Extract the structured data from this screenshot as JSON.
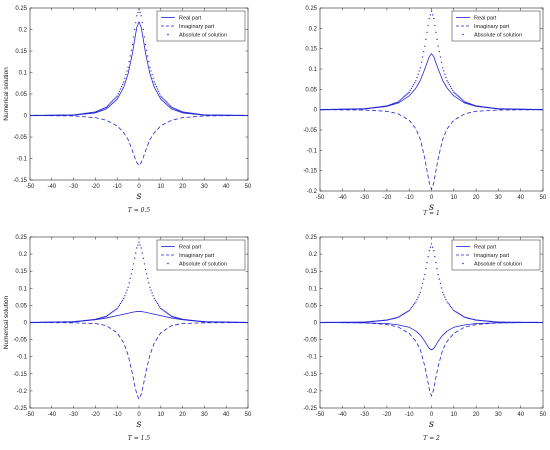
{
  "chart_data": [
    {
      "type": "line",
      "caption": "T = 0.5",
      "xlabel": "s",
      "ylabel": "Numerical solution",
      "xlim": [
        -50,
        50
      ],
      "ylim": [
        -0.15,
        0.25
      ],
      "xticks": [
        -50,
        -40,
        -30,
        -20,
        -10,
        0,
        10,
        20,
        30,
        40,
        50
      ],
      "yticks": [
        -0.15,
        -0.1,
        -0.05,
        0,
        0.05,
        0.1,
        0.15,
        0.2,
        0.25
      ],
      "legend": "top-right",
      "series": [
        {
          "name": "Real part",
          "style": "solid",
          "x": [
            -50,
            -30,
            -20,
            -15,
            -10,
            -7,
            -5,
            -3,
            -2,
            -1,
            0,
            1,
            2,
            3,
            5,
            7,
            10,
            15,
            20,
            30,
            50
          ],
          "y": [
            0,
            0.001,
            0.006,
            0.015,
            0.038,
            0.066,
            0.097,
            0.145,
            0.176,
            0.205,
            0.218,
            0.205,
            0.176,
            0.145,
            0.097,
            0.066,
            0.038,
            0.015,
            0.006,
            0.001,
            0
          ]
        },
        {
          "name": "Imaginary part",
          "style": "dashed",
          "x": [
            -50,
            -30,
            -20,
            -15,
            -10,
            -7,
            -5,
            -3,
            -2,
            -1,
            0,
            1,
            2,
            3,
            5,
            7,
            10,
            15,
            20,
            30,
            50
          ],
          "y": [
            0,
            -0.001,
            -0.005,
            -0.011,
            -0.024,
            -0.04,
            -0.056,
            -0.082,
            -0.097,
            -0.11,
            -0.116,
            -0.11,
            -0.097,
            -0.082,
            -0.056,
            -0.04,
            -0.024,
            -0.011,
            -0.005,
            -0.001,
            0
          ]
        },
        {
          "name": "Absolute of solution",
          "style": "dotted",
          "x": [
            -50,
            -30,
            -20,
            -15,
            -10,
            -7,
            -5,
            -3,
            -2,
            -1,
            0,
            1,
            2,
            3,
            5,
            7,
            10,
            15,
            20,
            30,
            50
          ],
          "y": [
            0,
            0.001,
            0.008,
            0.019,
            0.045,
            0.078,
            0.112,
            0.165,
            0.2,
            0.232,
            0.247,
            0.232,
            0.2,
            0.165,
            0.112,
            0.078,
            0.045,
            0.019,
            0.008,
            0.001,
            0
          ]
        }
      ]
    },
    {
      "type": "line",
      "caption": "T = 1",
      "xlabel": "s",
      "ylabel": "",
      "xlim": [
        -50,
        50
      ],
      "ylim": [
        -0.2,
        0.25
      ],
      "xticks": [
        -50,
        -40,
        -30,
        -20,
        -10,
        0,
        10,
        20,
        30,
        40,
        50
      ],
      "yticks": [
        -0.2,
        -0.15,
        -0.1,
        -0.05,
        0,
        0.05,
        0.1,
        0.15,
        0.2,
        0.25
      ],
      "legend": "top-right",
      "series": [
        {
          "name": "Real part",
          "style": "solid",
          "x": [
            -50,
            -30,
            -20,
            -15,
            -10,
            -7,
            -5,
            -3,
            -2,
            -1,
            0,
            1,
            2,
            3,
            5,
            7,
            10,
            15,
            20,
            30,
            50
          ],
          "y": [
            0,
            0.002,
            0.008,
            0.016,
            0.034,
            0.053,
            0.072,
            0.1,
            0.115,
            0.13,
            0.138,
            0.13,
            0.115,
            0.1,
            0.072,
            0.053,
            0.034,
            0.016,
            0.008,
            0.002,
            0
          ]
        },
        {
          "name": "Imaginary part",
          "style": "dashed",
          "x": [
            -50,
            -30,
            -20,
            -15,
            -10,
            -7,
            -5,
            -3,
            -2,
            -1,
            0,
            1,
            2,
            3,
            5,
            7,
            10,
            15,
            20,
            30,
            50
          ],
          "y": [
            0,
            -0.001,
            -0.004,
            -0.01,
            -0.026,
            -0.047,
            -0.073,
            -0.12,
            -0.15,
            -0.18,
            -0.196,
            -0.18,
            -0.15,
            -0.12,
            -0.073,
            -0.047,
            -0.026,
            -0.01,
            -0.004,
            -0.001,
            0
          ]
        },
        {
          "name": "Absolute of solution",
          "style": "dotted",
          "x": [
            -50,
            -30,
            -20,
            -15,
            -10,
            -7,
            -5,
            -3,
            -2,
            -1,
            0,
            1,
            2,
            3,
            5,
            7,
            10,
            15,
            20,
            30,
            50
          ],
          "y": [
            0,
            0.002,
            0.009,
            0.019,
            0.043,
            0.071,
            0.103,
            0.156,
            0.19,
            0.224,
            0.242,
            0.224,
            0.19,
            0.156,
            0.103,
            0.071,
            0.043,
            0.019,
            0.009,
            0.002,
            0
          ]
        }
      ]
    },
    {
      "type": "line",
      "caption": "T = 1.5",
      "xlabel": "s",
      "ylabel": "Numerical solution",
      "xlim": [
        -50,
        50
      ],
      "ylim": [
        -0.25,
        0.25
      ],
      "xticks": [
        -50,
        -40,
        -30,
        -20,
        -10,
        0,
        10,
        20,
        30,
        40,
        50
      ],
      "yticks": [
        -0.25,
        -0.2,
        -0.15,
        -0.1,
        -0.05,
        0,
        0.05,
        0.1,
        0.15,
        0.2,
        0.25
      ],
      "legend": "top-right",
      "series": [
        {
          "name": "Real part",
          "style": "solid",
          "x": [
            -50,
            -30,
            -20,
            -15,
            -10,
            -7,
            -5,
            -3,
            -2,
            -1,
            0,
            1,
            2,
            3,
            5,
            7,
            10,
            15,
            20,
            30,
            50
          ],
          "y": [
            0,
            0.002,
            0.008,
            0.013,
            0.02,
            0.024,
            0.027,
            0.03,
            0.031,
            0.032,
            0.032,
            0.032,
            0.031,
            0.03,
            0.027,
            0.024,
            0.02,
            0.013,
            0.008,
            0.002,
            0
          ]
        },
        {
          "name": "Imaginary part",
          "style": "dashed",
          "x": [
            -50,
            -30,
            -20,
            -15,
            -10,
            -7,
            -5,
            -3,
            -2,
            -1,
            0,
            1,
            2,
            3,
            5,
            7,
            10,
            15,
            20,
            30,
            50
          ],
          "y": [
            0,
            -0.001,
            -0.003,
            -0.009,
            -0.03,
            -0.06,
            -0.095,
            -0.15,
            -0.183,
            -0.21,
            -0.224,
            -0.21,
            -0.183,
            -0.15,
            -0.095,
            -0.06,
            -0.03,
            -0.009,
            -0.003,
            -0.001,
            0
          ]
        },
        {
          "name": "Absolute of solution",
          "style": "dotted",
          "x": [
            -50,
            -30,
            -20,
            -15,
            -10,
            -7,
            -5,
            -3,
            -2,
            -1,
            0,
            1,
            2,
            3,
            5,
            7,
            10,
            15,
            20,
            30,
            50
          ],
          "y": [
            0,
            0.002,
            0.009,
            0.018,
            0.041,
            0.07,
            0.103,
            0.155,
            0.188,
            0.218,
            0.235,
            0.218,
            0.188,
            0.155,
            0.103,
            0.07,
            0.041,
            0.018,
            0.009,
            0.002,
            0
          ]
        }
      ]
    },
    {
      "type": "line",
      "caption": "T = 2",
      "xlabel": "s",
      "ylabel": "",
      "xlim": [
        -50,
        50
      ],
      "ylim": [
        -0.25,
        0.25
      ],
      "xticks": [
        -50,
        -40,
        -30,
        -20,
        -10,
        0,
        10,
        20,
        30,
        40,
        50
      ],
      "yticks": [
        -0.25,
        -0.2,
        -0.15,
        -0.1,
        -0.05,
        0,
        0.05,
        0.1,
        0.15,
        0.2,
        0.25
      ],
      "legend": "top-right",
      "series": [
        {
          "name": "Real part",
          "style": "solid",
          "x": [
            -50,
            -30,
            -20,
            -15,
            -10,
            -7,
            -5,
            -3,
            -2,
            -1,
            0,
            1,
            2,
            3,
            5,
            7,
            10,
            15,
            20,
            30,
            50
          ],
          "y": [
            0,
            -0.001,
            -0.003,
            -0.007,
            -0.014,
            -0.025,
            -0.037,
            -0.055,
            -0.066,
            -0.076,
            -0.08,
            -0.076,
            -0.066,
            -0.055,
            -0.037,
            -0.025,
            -0.014,
            -0.007,
            -0.003,
            -0.001,
            0
          ]
        },
        {
          "name": "Imaginary part",
          "style": "dashed",
          "x": [
            -50,
            -30,
            -20,
            -15,
            -10,
            -7,
            -5,
            -3,
            -2,
            -1,
            0,
            1,
            2,
            3,
            5,
            7,
            10,
            15,
            20,
            30,
            50
          ],
          "y": [
            0,
            -0.001,
            -0.006,
            -0.013,
            -0.032,
            -0.055,
            -0.08,
            -0.128,
            -0.16,
            -0.195,
            -0.215,
            -0.195,
            -0.16,
            -0.128,
            -0.08,
            -0.055,
            -0.032,
            -0.013,
            -0.006,
            -0.001,
            0
          ]
        },
        {
          "name": "Absolute of solution",
          "style": "dotted",
          "x": [
            -50,
            -30,
            -20,
            -15,
            -10,
            -7,
            -5,
            -3,
            -2,
            -1,
            0,
            1,
            2,
            3,
            5,
            7,
            10,
            15,
            20,
            30,
            50
          ],
          "y": [
            0,
            0.001,
            0.007,
            0.015,
            0.035,
            0.06,
            0.088,
            0.14,
            0.175,
            0.21,
            0.23,
            0.21,
            0.175,
            0.14,
            0.088,
            0.06,
            0.035,
            0.015,
            0.007,
            0.001,
            0
          ]
        }
      ]
    }
  ],
  "colors": {
    "line": "#2323d6",
    "axis": "#262626",
    "background": "#ffffff"
  }
}
